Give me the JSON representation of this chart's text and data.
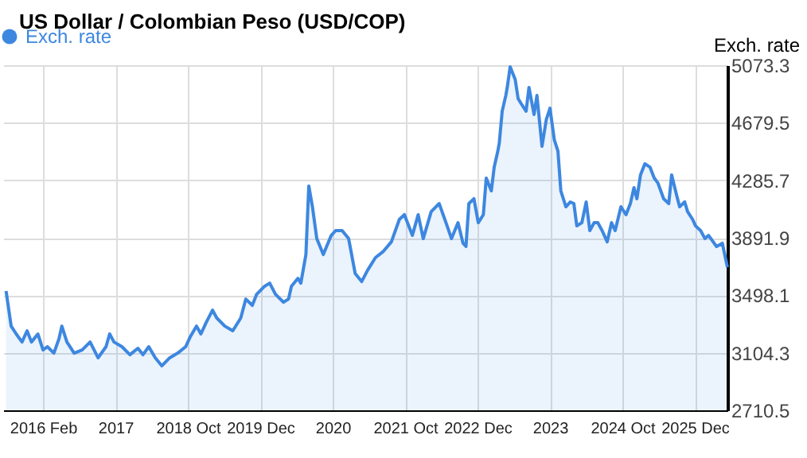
{
  "chart_data": {
    "type": "area",
    "title": "US Dollar / Colombian Peso (USD/COP)",
    "ylabel": "Exch. rate",
    "x": [
      2015.49,
      2015.56,
      2015.63,
      2015.71,
      2015.78,
      2015.84,
      2015.93,
      2016.0,
      2016.06,
      2016.15,
      2016.22,
      2016.26,
      2016.33,
      2016.43,
      2016.54,
      2016.65,
      2016.76,
      2016.87,
      2016.92,
      2016.98,
      2017.09,
      2017.2,
      2017.31,
      2017.38,
      2017.46,
      2017.55,
      2017.64,
      2017.75,
      2017.86,
      2017.97,
      2018.03,
      2018.12,
      2018.18,
      2018.25,
      2018.34,
      2018.4,
      2018.51,
      2018.62,
      2018.73,
      2018.8,
      2018.89,
      2018.95,
      2019.06,
      2019.13,
      2019.21,
      2019.32,
      2019.39,
      2019.43,
      2019.52,
      2019.56,
      2019.63,
      2019.67,
      2019.72,
      2019.78,
      2019.87,
      2019.98,
      2020.04,
      2020.13,
      2020.22,
      2020.31,
      2020.4,
      2020.48,
      2020.59,
      2020.7,
      2020.81,
      2020.92,
      2020.99,
      2021.1,
      2021.18,
      2021.25,
      2021.36,
      2021.47,
      2021.58,
      2021.64,
      2021.73,
      2021.8,
      2021.84,
      2021.88,
      2021.95,
      2022.01,
      2022.08,
      2022.12,
      2022.19,
      2022.23,
      2022.28,
      2022.3,
      2022.34,
      2022.39,
      2022.41,
      2022.45,
      2022.52,
      2022.56,
      2022.6,
      2022.67,
      2022.71,
      2022.78,
      2022.82,
      2022.89,
      2022.95,
      2023.0,
      2023.06,
      2023.11,
      2023.15,
      2023.22,
      2023.28,
      2023.33,
      2023.37,
      2023.44,
      2023.5,
      2023.55,
      2023.61,
      2023.66,
      2023.72,
      2023.79,
      2023.85,
      2023.9,
      2023.98,
      2024.05,
      2024.11,
      2024.16,
      2024.2,
      2024.25,
      2024.31,
      2024.38,
      2024.44,
      2024.49,
      2024.57,
      2024.64,
      2024.68,
      2024.75,
      2024.79,
      2024.86,
      2024.9,
      2024.97,
      2025.01,
      2025.08,
      2025.14,
      2025.19,
      2025.3,
      2025.38,
      2025.45
    ],
    "series": [
      {
        "name": "Exch. rate",
        "color": "#3d87e0",
        "values": [
          3527,
          3287,
          3233,
          3178,
          3255,
          3178,
          3233,
          3124,
          3146,
          3102,
          3200,
          3287,
          3178,
          3102,
          3124,
          3178,
          3070,
          3146,
          3233,
          3178,
          3146,
          3091,
          3135,
          3091,
          3146,
          3070,
          3015,
          3070,
          3102,
          3146,
          3211,
          3287,
          3233,
          3309,
          3396,
          3342,
          3287,
          3255,
          3342,
          3472,
          3429,
          3505,
          3560,
          3581,
          3505,
          3451,
          3472,
          3560,
          3614,
          3581,
          3777,
          4246,
          4104,
          3886,
          3777,
          3908,
          3941,
          3941,
          3886,
          3647,
          3592,
          3668,
          3756,
          3799,
          3864,
          4017,
          4050,
          3908,
          4050,
          3886,
          4071,
          4126,
          3973,
          3886,
          3995,
          3854,
          3832,
          4126,
          4159,
          3995,
          4050,
          4300,
          4213,
          4376,
          4485,
          4540,
          4758,
          4866,
          4921,
          5062,
          4975,
          4845,
          4812,
          4758,
          4921,
          4736,
          4866,
          4518,
          4703,
          4779,
          4562,
          4485,
          4213,
          4104,
          4137,
          4126,
          3973,
          3995,
          4137,
          3941,
          3995,
          3995,
          3941,
          3864,
          3995,
          3941,
          4104,
          4050,
          4126,
          4235,
          4159,
          4322,
          4398,
          4376,
          4300,
          4267,
          4159,
          4126,
          4322,
          4180,
          4104,
          4137,
          4071,
          4017,
          3973,
          3941,
          3886,
          3908,
          3832,
          3854,
          3690
        ]
      }
    ],
    "xlim": [
      2015.45,
      2025.45
    ],
    "xticks": [
      {
        "value": 2016,
        "label": "2016 Feb"
      },
      2017,
      {
        "value": 2018,
        "label": "2018 Oct"
      },
      {
        "value": 2019,
        "label": "2019 Dec"
      },
      2020,
      {
        "value": 2021,
        "label": "2021 Oct"
      },
      {
        "value": 2022,
        "label": "2022 Dec"
      },
      2023,
      {
        "value": 2024,
        "label": "2024 Oct"
      },
      {
        "value": 2025,
        "label": "2025 Dec"
      }
    ],
    "ylim": [
      2710.5,
      5073.3
    ],
    "yticks": [
      2710.5,
      3104.3,
      3498.1,
      3891.9,
      4285.7,
      4679.5,
      5073.3
    ],
    "grid": true,
    "legend": "top left"
  }
}
